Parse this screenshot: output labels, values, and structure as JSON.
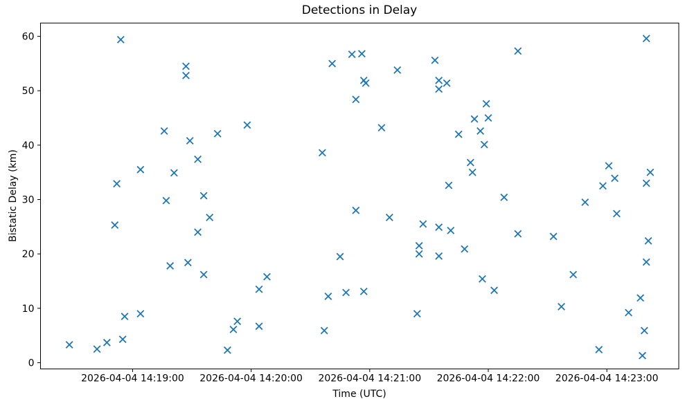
{
  "figure": {
    "background": "#ffffff",
    "text_color": "#000000",
    "spine_color": "#000000"
  },
  "chart_data": {
    "type": "scatter",
    "title": "Detections in Delay",
    "xlabel": "Time (UTC)",
    "ylabel": "Bistatic Delay (km)",
    "date": "2026-04-04",
    "marker": "x",
    "marker_color": "#1f77b4",
    "grid": "off",
    "legend": "none",
    "x_ticks": [
      {
        "time": "14:19:00",
        "label": "2026-04-04 14:19:00"
      },
      {
        "time": "14:20:00",
        "label": "2026-04-04 14:20:00"
      },
      {
        "time": "14:21:00",
        "label": "2026-04-04 14:21:00"
      },
      {
        "time": "14:22:00",
        "label": "2026-04-04 14:22:00"
      },
      {
        "time": "14:23:00",
        "label": "2026-04-04 14:23:00"
      }
    ],
    "y_ticks": [
      0,
      10,
      20,
      30,
      40,
      50,
      60
    ],
    "xlim_seconds_after_14_19": [
      -46.6,
      276.4
    ],
    "ylim": [
      -1.15,
      62.45
    ],
    "points": [
      [
        "14:18:28",
        3.3
      ],
      [
        "14:18:42",
        2.5
      ],
      [
        "14:18:47",
        3.7
      ],
      [
        "14:18:51",
        25.3
      ],
      [
        "14:18:52",
        32.9
      ],
      [
        "14:18:54",
        59.4
      ],
      [
        "14:18:55",
        4.3
      ],
      [
        "14:18:56",
        8.5
      ],
      [
        "14:19:04",
        35.5
      ],
      [
        "14:19:04",
        9.0
      ],
      [
        "14:19:16",
        42.6
      ],
      [
        "14:19:17",
        29.8
      ],
      [
        "14:19:19",
        17.8
      ],
      [
        "14:19:21",
        34.9
      ],
      [
        "14:19:27",
        54.5
      ],
      [
        "14:19:27",
        52.8
      ],
      [
        "14:19:28",
        18.4
      ],
      [
        "14:19:29",
        40.8
      ],
      [
        "14:19:33",
        37.4
      ],
      [
        "14:19:33",
        24.0
      ],
      [
        "14:19:36",
        30.7
      ],
      [
        "14:19:36",
        16.2
      ],
      [
        "14:19:39",
        26.7
      ],
      [
        "14:19:43",
        42.1
      ],
      [
        "14:19:48",
        2.3
      ],
      [
        "14:19:51",
        6.1
      ],
      [
        "14:19:53",
        7.6
      ],
      [
        "14:19:58",
        43.7
      ],
      [
        "14:20:04",
        13.5
      ],
      [
        "14:20:04",
        6.7
      ],
      [
        "14:20:08",
        15.8
      ],
      [
        "14:20:36",
        38.6
      ],
      [
        "14:20:37",
        5.9
      ],
      [
        "14:20:39",
        12.2
      ],
      [
        "14:20:41",
        55.0
      ],
      [
        "14:20:45",
        19.5
      ],
      [
        "14:20:48",
        12.9
      ],
      [
        "14:20:51",
        56.7
      ],
      [
        "14:20:53",
        48.4
      ],
      [
        "14:20:53",
        28.0
      ],
      [
        "14:20:56",
        56.8
      ],
      [
        "14:20:57",
        51.9
      ],
      [
        "14:20:57",
        13.1
      ],
      [
        "14:20:58",
        51.4
      ],
      [
        "14:21:06",
        43.2
      ],
      [
        "14:21:10",
        26.7
      ],
      [
        "14:21:14",
        53.8
      ],
      [
        "14:21:24",
        9.0
      ],
      [
        "14:21:25",
        21.5
      ],
      [
        "14:21:25",
        20.0
      ],
      [
        "14:21:27",
        25.5
      ],
      [
        "14:21:33",
        55.6
      ],
      [
        "14:21:35",
        51.9
      ],
      [
        "14:21:35",
        50.3
      ],
      [
        "14:21:35",
        24.9
      ],
      [
        "14:21:35",
        19.6
      ],
      [
        "14:21:39",
        51.4
      ],
      [
        "14:21:40",
        32.6
      ],
      [
        "14:21:41",
        24.3
      ],
      [
        "14:21:45",
        42.0
      ],
      [
        "14:21:48",
        20.9
      ],
      [
        "14:21:51",
        36.8
      ],
      [
        "14:21:52",
        35.0
      ],
      [
        "14:21:53",
        44.8
      ],
      [
        "14:21:56",
        42.6
      ],
      [
        "14:21:57",
        15.4
      ],
      [
        "14:21:58",
        40.1
      ],
      [
        "14:21:59",
        47.6
      ],
      [
        "14:22:00",
        45.0
      ],
      [
        "14:22:03",
        13.3
      ],
      [
        "14:22:08",
        30.4
      ],
      [
        "14:22:15",
        57.3
      ],
      [
        "14:22:15",
        23.7
      ],
      [
        "14:22:33",
        23.2
      ],
      [
        "14:22:37",
        10.3
      ],
      [
        "14:22:43",
        16.2
      ],
      [
        "14:22:49",
        29.5
      ],
      [
        "14:22:56",
        2.4
      ],
      [
        "14:22:58",
        32.5
      ],
      [
        "14:23:01",
        36.2
      ],
      [
        "14:23:04",
        33.9
      ],
      [
        "14:23:05",
        27.4
      ],
      [
        "14:23:11",
        9.2
      ],
      [
        "14:23:17",
        11.9
      ],
      [
        "14:23:18",
        1.3
      ],
      [
        "14:23:19",
        5.9
      ],
      [
        "14:23:20",
        59.6
      ],
      [
        "14:23:20",
        33.0
      ],
      [
        "14:23:20",
        18.5
      ],
      [
        "14:23:21",
        22.4
      ],
      [
        "14:23:22",
        35.0
      ]
    ]
  }
}
